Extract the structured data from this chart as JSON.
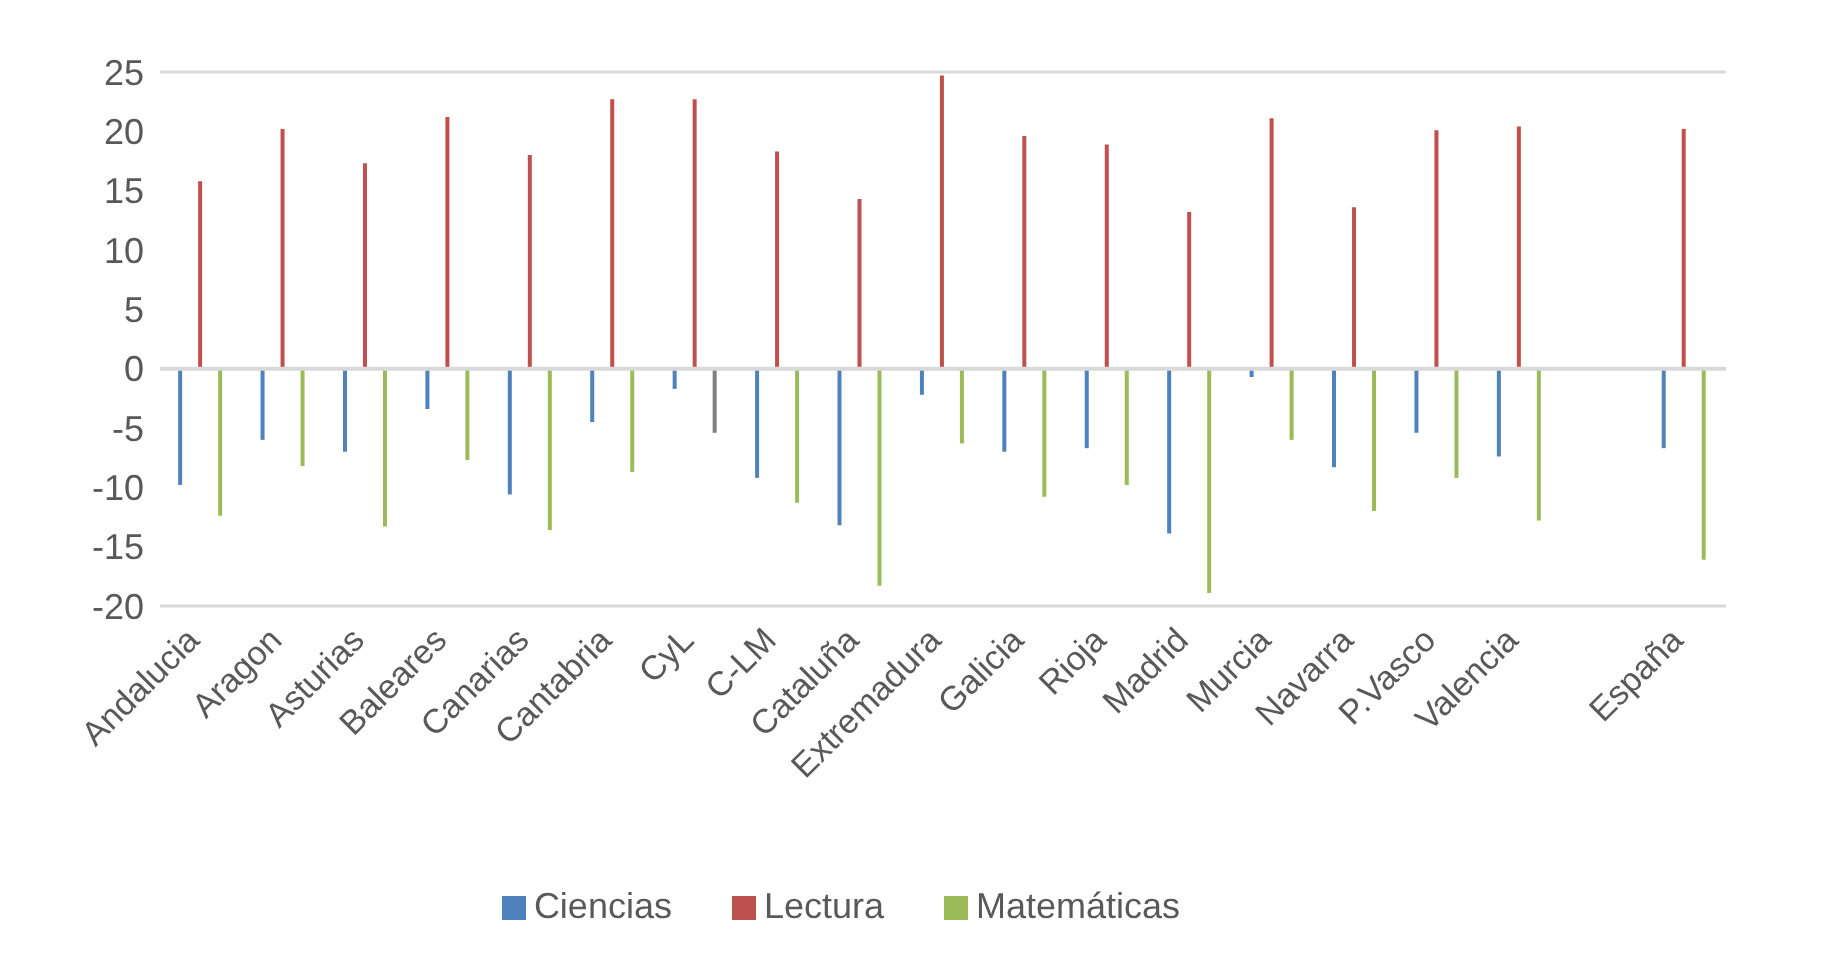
{
  "chart_data": {
    "type": "bar",
    "categories": [
      "Andalucia",
      "Aragon",
      "Asturias",
      "Baleares",
      "Canarias",
      "Cantabria",
      "CyL",
      "C-LM",
      "Cataluña",
      "Extremadura",
      "Galicia",
      "Rioja",
      "Madrid",
      "Murcia",
      "Navarra",
      "P.Vasco",
      "Valencia",
      null,
      "España"
    ],
    "series": [
      {
        "name": "Ciencias",
        "color": "#4f81bd",
        "values": [
          -9.8,
          -6.0,
          -7.0,
          -3.4,
          -10.6,
          -4.5,
          -1.7,
          -9.2,
          -13.2,
          -2.2,
          -7.0,
          -6.7,
          -13.9,
          -0.7,
          -8.3,
          -5.4,
          -7.4,
          null,
          -6.7
        ]
      },
      {
        "name": "Lectura",
        "color": "#c0504d",
        "values": [
          15.8,
          20.2,
          17.3,
          21.2,
          18.0,
          22.7,
          22.7,
          18.3,
          14.3,
          24.7,
          19.6,
          18.9,
          13.2,
          21.1,
          13.6,
          20.1,
          20.4,
          null,
          20.2
        ]
      },
      {
        "name": "Matemáticas",
        "color": "#9bbb59",
        "colors": [
          "#9bbb59",
          "#9bbb59",
          "#9bbb59",
          "#9bbb59",
          "#9bbb59",
          "#9bbb59",
          "#7f7f7f",
          "#9bbb59",
          "#9bbb59",
          "#9bbb59",
          "#9bbb59",
          "#9bbb59",
          "#9bbb59",
          "#9bbb59",
          "#9bbb59",
          "#9bbb59",
          "#9bbb59",
          "#9bbb59",
          "#9bbb59"
        ],
        "values": [
          -12.4,
          -8.2,
          -13.3,
          -7.7,
          -13.6,
          -8.7,
          -5.4,
          -11.3,
          -18.3,
          -6.3,
          -10.8,
          -9.8,
          -18.9,
          -6.0,
          -12.0,
          -9.2,
          -12.8,
          null,
          -16.1
        ]
      }
    ],
    "ylim": [
      -20,
      25
    ],
    "yticks": [
      -20,
      -15,
      -10,
      -5,
      0,
      5,
      10,
      15,
      20,
      25
    ],
    "grid": "y",
    "legend": "bottom"
  }
}
